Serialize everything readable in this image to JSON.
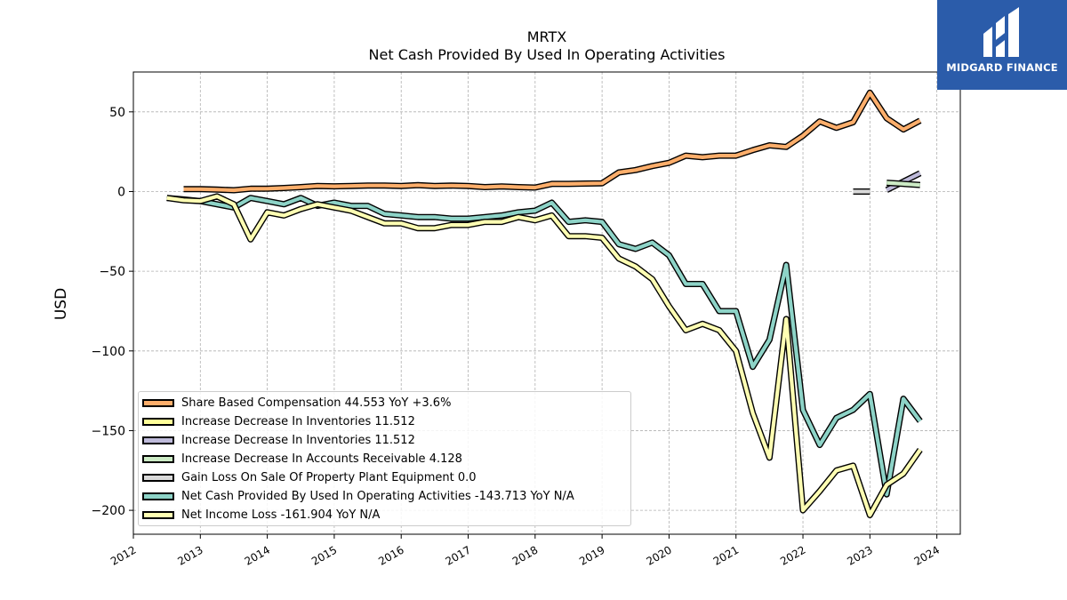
{
  "ticker": "MRTX",
  "title": "Net Cash Provided By Used In Operating Activities",
  "logo_text": "MIDGARD FINANCE",
  "chart_data": {
    "type": "line",
    "ylabel": "USD",
    "xlabel": "",
    "ylim": [
      -215,
      75
    ],
    "xlim": [
      2012.0,
      2024.35
    ],
    "x_ticks": [
      "2012",
      "2013",
      "2014",
      "2015",
      "2016",
      "2017",
      "2018",
      "2019",
      "2020",
      "2021",
      "2022",
      "2023",
      "2024"
    ],
    "y_ticks": [
      50,
      0,
      -50,
      -100,
      -150,
      -200
    ],
    "y_tick_labels": [
      "50",
      "0",
      "−50",
      "−100",
      "−150",
      "−200"
    ],
    "grid": true,
    "legend_position": "lower-left",
    "series": [
      {
        "name": "Share Based Compensation",
        "legend": "Share Based Compensation  44.553 YoY +3.6%",
        "color": "#fdae6b",
        "x": [
          2012.75,
          2013.0,
          2013.25,
          2013.5,
          2013.75,
          2014.0,
          2014.25,
          2014.5,
          2014.75,
          2015.0,
          2015.25,
          2015.5,
          2015.75,
          2016.0,
          2016.25,
          2016.5,
          2016.75,
          2017.0,
          2017.25,
          2017.5,
          2017.75,
          2018.0,
          2018.25,
          2018.5,
          2018.75,
          2019.0,
          2019.25,
          2019.5,
          2019.75,
          2020.0,
          2020.25,
          2020.5,
          2020.75,
          2021.0,
          2021.25,
          2021.5,
          2021.75,
          2022.0,
          2022.25,
          2022.5,
          2022.75,
          2023.0,
          2023.25,
          2023.5,
          2023.75
        ],
        "y": [
          1.5,
          1.5,
          1.2,
          0.8,
          1.8,
          1.8,
          2.2,
          2.8,
          3.5,
          3.3,
          3.5,
          3.8,
          3.8,
          3.5,
          4.0,
          3.5,
          3.7,
          3.5,
          2.8,
          3.2,
          2.8,
          2.5,
          4.8,
          4.8,
          5.0,
          5.2,
          12,
          13.5,
          16,
          18,
          22.5,
          21.5,
          22.5,
          22.5,
          26,
          29,
          28,
          35,
          44,
          40,
          43.5,
          62,
          46,
          39,
          44.5
        ]
      },
      {
        "name": "Increase Decrease In Inventories",
        "legend": "Increase Decrease In Inventories  11.512",
        "color": "#ffff99",
        "x": [],
        "y": []
      },
      {
        "name": "Increase Decrease In Inventories",
        "legend": "Increase Decrease In Inventories  11.512",
        "color": "#bebada",
        "x": [
          2023.25,
          2023.75
        ],
        "y": [
          1.0,
          11.5
        ]
      },
      {
        "name": "Increase Decrease In Accounts Receivable",
        "legend": "Increase Decrease In Accounts Receivable  4.128",
        "color": "#ccebc5",
        "x": [
          2023.25,
          2023.75
        ],
        "y": [
          5.5,
          4.1
        ]
      },
      {
        "name": "Gain Loss On Sale Of Property Plant Equipment",
        "legend": "Gain Loss On Sale Of Property Plant Equipment  0.0",
        "color": "#d9d9d9",
        "x": [
          2022.75,
          2023.0
        ],
        "y": [
          0.0,
          0.0
        ]
      },
      {
        "name": "Net Cash Provided By Used In Operating Activities",
        "legend": "Net Cash Provided By Used In Operating Activities  -143.713 YoY N/A",
        "color": "#8dd3c7",
        "x": [
          2012.5,
          2012.75,
          2013.0,
          2013.25,
          2013.5,
          2013.75,
          2014.0,
          2014.25,
          2014.5,
          2014.75,
          2015.0,
          2015.25,
          2015.5,
          2015.75,
          2016.0,
          2016.25,
          2016.5,
          2016.75,
          2017.0,
          2017.25,
          2017.5,
          2017.75,
          2018.0,
          2018.25,
          2018.5,
          2018.75,
          2019.0,
          2019.25,
          2019.5,
          2019.75,
          2020.0,
          2020.25,
          2020.5,
          2020.75,
          2021.0,
          2021.25,
          2021.5,
          2021.75,
          2022.0,
          2022.25,
          2022.5,
          2022.75,
          2023.0,
          2023.25,
          2023.5,
          2023.75
        ],
        "y": [
          -4,
          -5,
          -6,
          -8,
          -10,
          -4,
          -6,
          -8,
          -4,
          -9,
          -7,
          -9,
          -9,
          -14,
          -15,
          -16,
          -16,
          -17,
          -17,
          -16,
          -15,
          -13,
          -12,
          -7,
          -19,
          -18,
          -19,
          -33,
          -36,
          -32,
          -40,
          -58,
          -58,
          -75,
          -75,
          -110,
          -93,
          -46,
          -137,
          -159,
          -142,
          -137,
          -127,
          -190,
          -130,
          -144
        ]
      },
      {
        "name": "Net Income Loss",
        "legend": "Net Income Loss  -161.904 YoY N/A",
        "color": "#ffffb3",
        "x": [
          2012.5,
          2012.75,
          2013.0,
          2013.25,
          2013.5,
          2013.75,
          2014.0,
          2014.25,
          2014.5,
          2014.75,
          2015.0,
          2015.25,
          2015.5,
          2015.75,
          2016.0,
          2016.25,
          2016.5,
          2016.75,
          2017.0,
          2017.25,
          2017.5,
          2017.75,
          2018.0,
          2018.25,
          2018.5,
          2018.75,
          2019.0,
          2019.25,
          2019.5,
          2019.75,
          2020.0,
          2020.25,
          2020.5,
          2020.75,
          2021.0,
          2021.25,
          2021.5,
          2021.75,
          2022.0,
          2022.25,
          2022.5,
          2022.75,
          2023.0,
          2023.25,
          2023.5,
          2023.75
        ],
        "y": [
          -4,
          -5.5,
          -6,
          -3,
          -8,
          -30,
          -13,
          -15,
          -11,
          -8,
          -10,
          -12,
          -16,
          -20,
          -20,
          -23,
          -23,
          -21,
          -21,
          -19,
          -19,
          -16,
          -18,
          -15,
          -28,
          -28,
          -29,
          -42,
          -47,
          -55,
          -72,
          -87,
          -83,
          -87,
          -100,
          -139,
          -167,
          -80,
          -200,
          -188,
          -175,
          -172,
          -203,
          -184,
          -177,
          -162
        ]
      }
    ]
  }
}
